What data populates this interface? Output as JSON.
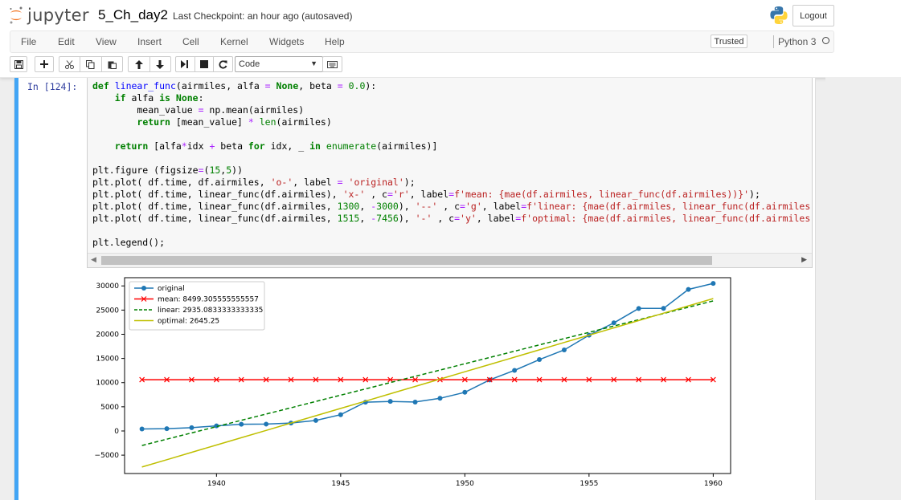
{
  "header": {
    "logo_text": "jupyter",
    "notebook_name": "5_Ch_day2",
    "checkpoint": "Last Checkpoint: an hour ago (autosaved)",
    "logout_label": "Logout"
  },
  "menu": {
    "items": [
      "File",
      "Edit",
      "View",
      "Insert",
      "Cell",
      "Kernel",
      "Widgets",
      "Help"
    ],
    "trusted_label": "Trusted",
    "kernel_name": "Python 3"
  },
  "toolbar": {
    "cell_type": "Code",
    "buttons": [
      "save-icon",
      "add-cell-icon",
      "cut-icon",
      "copy-icon",
      "paste-icon",
      "move-up-icon",
      "move-down-icon",
      "run-icon",
      "stop-icon",
      "restart-icon",
      "keyboard-icon"
    ]
  },
  "cell": {
    "prompt": "In [124]:",
    "code_lines": [
      "def linear_func(airmiles, alfa = None, beta = 0.0):",
      "    if alfa is None:",
      "        mean_value = np.mean(airmiles)",
      "        return [mean_value] * len(airmiles)",
      "",
      "    return [alfa*idx + beta for idx, _ in enumerate(airmiles)]",
      "",
      "plt.figure (figsize=(15,5))",
      "plt.plot( df.time, df.airmiles, 'o-', label = 'original');",
      "plt.plot( df.time, linear_func(df.airmiles), 'x-' , c='r', label=f'mean: {mae(df.airmiles, linear_func(df.airmiles))}');",
      "plt.plot( df.time, linear_func(df.airmiles, 1300, -3000), '--' , c='g', label=f'linear: {mae(df.airmiles, linear_func(df.airmiles",
      "plt.plot( df.time, linear_func(df.airmiles, 1515, -7456), '-' , c='y', label=f'optimal: {mae(df.airmiles, linear_func(df.airmiles",
      "",
      "plt.legend();"
    ]
  },
  "chart_data": {
    "type": "line",
    "title": "",
    "xlabel": "",
    "ylabel": "",
    "xlim": [
      1936.3,
      1960.7
    ],
    "ylim": [
      -8800,
      31700
    ],
    "xticks": [
      1940,
      1945,
      1950,
      1955,
      1960
    ],
    "yticks": [
      -5000,
      0,
      5000,
      10000,
      15000,
      20000,
      25000,
      30000
    ],
    "ytick_labels": [
      "−5000",
      "0",
      "5000",
      "10000",
      "15000",
      "20000",
      "25000",
      "30000"
    ],
    "legend_position": "top-left",
    "grid": false,
    "x": [
      1937,
      1938,
      1939,
      1940,
      1941,
      1942,
      1943,
      1944,
      1945,
      1946,
      1947,
      1948,
      1949,
      1950,
      1951,
      1952,
      1953,
      1954,
      1955,
      1956,
      1957,
      1958,
      1959,
      1960
    ],
    "series": [
      {
        "name": "original",
        "style": "o-",
        "color": "#1f77b4",
        "values": [
          412,
          480,
          683,
          1052,
          1385,
          1418,
          1634,
          2178,
          3362,
          5948,
          6109,
          5981,
          6753,
          8003,
          10566,
          12528,
          14760,
          16769,
          19819,
          22362,
          25340,
          25343,
          29269,
          30514
        ]
      },
      {
        "name": "mean: 8499.305555555557",
        "style": "x-",
        "color": "#ff0000",
        "values": [
          10611,
          10611,
          10611,
          10611,
          10611,
          10611,
          10611,
          10611,
          10611,
          10611,
          10611,
          10611,
          10611,
          10611,
          10611,
          10611,
          10611,
          10611,
          10611,
          10611,
          10611,
          10611,
          10611,
          10611
        ]
      },
      {
        "name": "linear: 2935.0833333333335",
        "style": "--",
        "color": "#008000",
        "values": [
          -3000,
          -1700,
          -400,
          900,
          2200,
          3500,
          4800,
          6100,
          7400,
          8700,
          10000,
          11300,
          12600,
          13900,
          15200,
          16500,
          17800,
          19100,
          20400,
          21700,
          23000,
          24300,
          25600,
          26900
        ]
      },
      {
        "name": "optimal: 2645.25",
        "style": "-",
        "color": "#bfbf00",
        "values": [
          -7456,
          -5941,
          -4426,
          -2911,
          -1396,
          119,
          1634,
          3149,
          4664,
          6179,
          7694,
          9209,
          10724,
          12239,
          13754,
          15269,
          16784,
          18299,
          19814,
          21329,
          22844,
          24359,
          25874,
          27389
        ]
      }
    ]
  }
}
